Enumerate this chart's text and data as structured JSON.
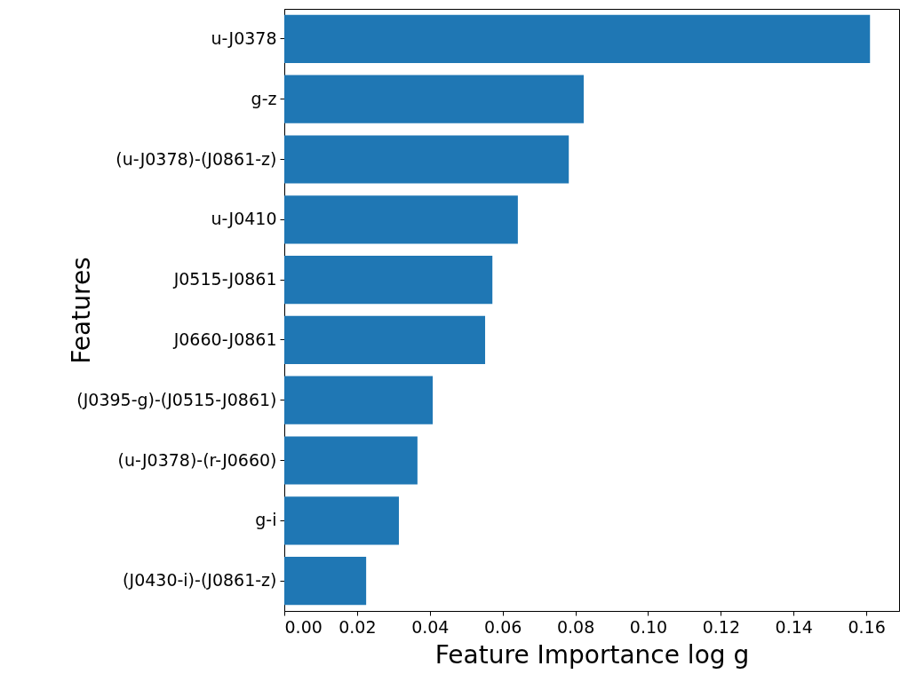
{
  "chart_data": {
    "type": "bar",
    "orientation": "horizontal",
    "xlabel": "Feature Importance log g",
    "ylabel": "Features",
    "categories": [
      "u-J0378",
      "g-z",
      "(u-J0378)-(J0861-z)",
      "u-J0410",
      "J0515-J0861",
      "J0660-J0861",
      "(J0395-g)-(J0515-J0861)",
      "(u-J0378)-(r-J0660)",
      "g-i",
      "(J0430-i)-(J0861-z)"
    ],
    "values": [
      0.161,
      0.0823,
      0.0782,
      0.0642,
      0.0572,
      0.0552,
      0.0408,
      0.0366,
      0.0315,
      0.0225
    ],
    "color": "#1f77b4",
    "xlim": [
      0,
      0.169
    ],
    "xticks": [
      {
        "value": 0,
        "label": "0.00"
      },
      {
        "value": 0.02,
        "label": "0.02"
      },
      {
        "value": 0.04,
        "label": "0.04"
      },
      {
        "value": 0.06,
        "label": "0.06"
      },
      {
        "value": 0.08,
        "label": "0.08"
      },
      {
        "value": 0.1,
        "label": "0.10"
      },
      {
        "value": 0.12,
        "label": "0.12"
      },
      {
        "value": 0.14,
        "label": "0.14"
      },
      {
        "value": 0.16,
        "label": "0.16"
      }
    ],
    "grid": false
  }
}
